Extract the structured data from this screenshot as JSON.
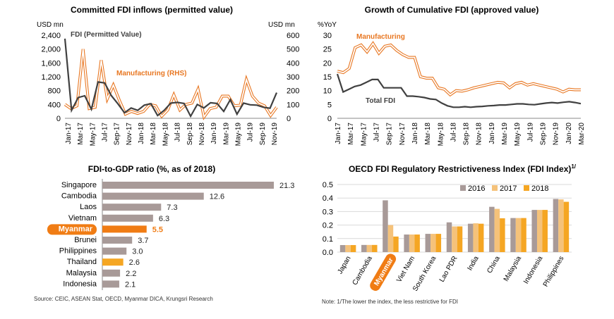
{
  "colors": {
    "manufacturing": "#E87722",
    "total": "#404040",
    "bar": "#A89A98",
    "highlight": "#F07C14",
    "highlight2": "#F5A623",
    "y2016": "#A89A98",
    "y2017": "#F5C27A",
    "y2018": "#F5A623",
    "grid": "#d9d9d9"
  },
  "chart_data": [
    {
      "type": "line",
      "title": "Committed FDI inflows (permitted value)",
      "ylabel": "USD mn",
      "y2label": "USD mn",
      "ylim": [
        0,
        2400
      ],
      "y2lim": [
        0,
        600
      ],
      "yticks": [
        "0",
        "400",
        "800",
        "1,200",
        "1,600",
        "2,000",
        "2,400"
      ],
      "y2ticks": [
        "0",
        "100",
        "200",
        "300",
        "400",
        "500",
        "600"
      ],
      "xticklabels": [
        "Jan-17",
        "Mar-17",
        "May-17",
        "Jul-17",
        "Sep-17",
        "Nov-17",
        "Jan-18",
        "Mar-18",
        "May-18",
        "Jul-18",
        "Sep-18",
        "Nov-18",
        "Jan-19",
        "Mar-19",
        "May-19",
        "Jul-19",
        "Sep-19",
        "Nov-19"
      ],
      "series": [
        {
          "name": "FDI (Permitted Value)",
          "axis": "left",
          "values": [
            2300,
            230,
            600,
            650,
            260,
            1050,
            1020,
            660,
            420,
            160,
            300,
            230,
            380,
            420,
            80,
            230,
            440,
            460,
            430,
            60,
            400,
            300,
            450,
            430,
            200,
            540,
            120,
            440,
            390,
            380,
            320,
            290,
            740
          ]
        },
        {
          "name": "Manufacturing (RHS)",
          "axis": "right",
          "values": [
            100,
            70,
            90,
            500,
            70,
            80,
            420,
            140,
            240,
            130,
            30,
            50,
            35,
            50,
            100,
            90,
            15,
            60,
            170,
            60,
            100,
            110,
            210,
            10,
            70,
            80,
            160,
            160,
            90,
            95,
            280,
            160,
            110,
            90,
            20,
            80
          ]
        }
      ]
    },
    {
      "type": "line",
      "title": "Growth of Cumulative FDI (approved value)",
      "ylabel": "%YoY",
      "ylim": [
        0,
        30
      ],
      "yticks": [
        "0",
        "5",
        "10",
        "15",
        "20",
        "25",
        "30"
      ],
      "xticklabels": [
        "Jan-17",
        "Mar-17",
        "May-17",
        "Jul-17",
        "Sep-17",
        "Nov-17",
        "Jan-18",
        "Mar-18",
        "May-18",
        "Jul-18",
        "Sep-18",
        "Nov-18",
        "Jan-19",
        "Mar-19",
        "May-19",
        "Jul-19",
        "Sep-19",
        "Nov-19",
        "Jan-20",
        "Mar-20"
      ],
      "series": [
        {
          "name": "Manufacturing",
          "values": [
            17,
            16.5,
            18,
            25.5,
            26.5,
            24,
            27,
            23.5,
            26,
            26.5,
            24.5,
            23,
            22,
            22,
            15,
            14.5,
            14.5,
            11,
            10.5,
            8.5,
            10,
            9.8,
            10.3,
            11,
            11.5,
            12,
            12.5,
            13,
            12.8,
            11,
            12.5,
            13,
            12,
            12.5,
            12,
            11.5,
            11,
            10.5,
            9.5,
            10.5,
            10.3,
            10.3
          ]
        },
        {
          "name": "Total FDI",
          "values": [
            16,
            9.5,
            10.5,
            11.5,
            12,
            13,
            14,
            14,
            11,
            11,
            11,
            11,
            8,
            8,
            7.8,
            7.5,
            7,
            6.8,
            5.5,
            4.5,
            4,
            4,
            4.2,
            4,
            4.2,
            4.3,
            4.5,
            4.6,
            4.8,
            4.8,
            5,
            5.2,
            5.2,
            5,
            4.9,
            5.2,
            5.5,
            5.7,
            5.5,
            5.8,
            6,
            5.7,
            5.3
          ]
        }
      ]
    },
    {
      "type": "bar",
      "orientation": "horizontal",
      "title": "FDI-to-GDP ratio (%, as of 2018)",
      "categories": [
        "Singapore",
        "Cambodia",
        "Laos",
        "Vietnam",
        "Myanmar",
        "Brunei",
        "Philippines",
        "Thailand",
        "Malaysia",
        "Indonesia"
      ],
      "values": [
        21.3,
        12.6,
        7.3,
        6.3,
        5.5,
        3.7,
        3.0,
        2.6,
        2.2,
        2.1
      ],
      "value_labels": [
        "21.3",
        "12.6",
        "7.3",
        "6.3",
        "5.5",
        "3.7",
        "3.0",
        "2.6",
        "2.2",
        "2.1"
      ],
      "highlight": {
        "Myanmar": "highlight",
        "Thailand": "highlight2"
      }
    },
    {
      "type": "bar",
      "title": "OECD FDI Regulatory Restrictiveness Index (FDI Index)",
      "title_sup": "1/",
      "ylim": [
        0,
        0.5
      ],
      "yticks": [
        "0.0",
        "0.1",
        "0.2",
        "0.3",
        "0.4",
        "0.5"
      ],
      "categories": [
        "Japan",
        "Cambodia",
        "Myanmar",
        "Viet Nam",
        "South Korea",
        "Lao PDR",
        "India",
        "China",
        "Malaysia",
        "Indonesia",
        "Philippines"
      ],
      "series": [
        {
          "name": "2016",
          "values": [
            0.052,
            0.053,
            0.383,
            0.13,
            0.135,
            0.22,
            0.21,
            0.335,
            0.252,
            0.312,
            0.393
          ]
        },
        {
          "name": "2017",
          "values": [
            0.052,
            0.053,
            0.2,
            0.13,
            0.135,
            0.19,
            0.213,
            0.32,
            0.252,
            0.312,
            0.39
          ]
        },
        {
          "name": "2018",
          "values": [
            0.052,
            0.053,
            0.115,
            0.13,
            0.135,
            0.19,
            0.21,
            0.25,
            0.252,
            0.312,
            0.372
          ]
        }
      ]
    }
  ],
  "footer": {
    "source": "Source: CEIC, ASEAN Stat, OECD, Myanmar DICA, Krungsri Research",
    "note": "Note: 1/The lower the index, the less restrictive for FDI"
  }
}
